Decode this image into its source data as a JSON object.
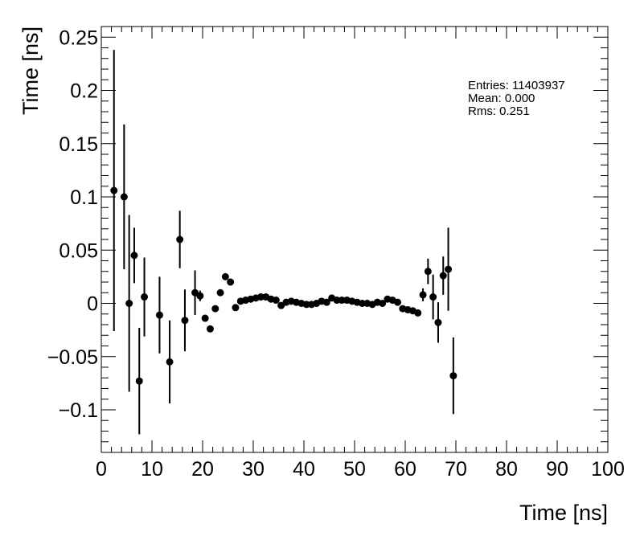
{
  "chart_data": {
    "type": "scatter",
    "xlabel": "Time [ns]",
    "ylabel": "Time [ns]",
    "xlim": [
      0,
      100
    ],
    "ylim": [
      -0.14,
      0.26
    ],
    "x_ticks": [
      0,
      10,
      20,
      30,
      40,
      50,
      60,
      70,
      80,
      90,
      100
    ],
    "x_tick_labels": [
      "0",
      "10",
      "20",
      "30",
      "40",
      "50",
      "60",
      "70",
      "80",
      "90",
      "100"
    ],
    "y_ticks": [
      -0.1,
      -0.05,
      0,
      0.05,
      0.1,
      0.15,
      0.2,
      0.25
    ],
    "y_tick_labels": [
      "−0.1",
      "−0.05",
      "0",
      "0.05",
      "0.1",
      "0.15",
      "0.2",
      "0.25"
    ],
    "grid": false,
    "marker_color": "#000000",
    "stats_box": {
      "entries": "Entries: 11403937",
      "mean": "Mean: 0.000",
      "rms": "Rms: 0.251"
    },
    "points": [
      {
        "x": 2.5,
        "y": 0.106,
        "err": 0.132
      },
      {
        "x": 4.5,
        "y": 0.1,
        "err": 0.068
      },
      {
        "x": 5.5,
        "y": 0.0,
        "err": 0.083
      },
      {
        "x": 6.5,
        "y": 0.045,
        "err": 0.026
      },
      {
        "x": 7.5,
        "y": -0.073,
        "err": 0.05
      },
      {
        "x": 8.5,
        "y": 0.006,
        "err": 0.037
      },
      {
        "x": 11.5,
        "y": -0.011,
        "err": 0.036
      },
      {
        "x": 13.5,
        "y": -0.055,
        "err": 0.039
      },
      {
        "x": 15.5,
        "y": 0.06,
        "err": 0.027
      },
      {
        "x": 16.5,
        "y": -0.016,
        "err": 0.029
      },
      {
        "x": 18.5,
        "y": 0.01,
        "err": 0.021
      },
      {
        "x": 19.5,
        "y": 0.007,
        "err": 0.005
      },
      {
        "x": 20.5,
        "y": -0.014,
        "err": 0.003
      },
      {
        "x": 21.5,
        "y": -0.024,
        "err": 0.003
      },
      {
        "x": 22.5,
        "y": -0.005,
        "err": 0.002
      },
      {
        "x": 23.5,
        "y": 0.01,
        "err": 0.002
      },
      {
        "x": 24.5,
        "y": 0.025,
        "err": 0.002
      },
      {
        "x": 25.5,
        "y": 0.02,
        "err": 0.002
      },
      {
        "x": 26.5,
        "y": -0.004,
        "err": 0.001
      },
      {
        "x": 27.5,
        "y": 0.002,
        "err": 0.001
      },
      {
        "x": 28.5,
        "y": 0.003,
        "err": 0.001
      },
      {
        "x": 29.5,
        "y": 0.004,
        "err": 0.001
      },
      {
        "x": 30.5,
        "y": 0.005,
        "err": 0.001
      },
      {
        "x": 31.5,
        "y": 0.006,
        "err": 0.001
      },
      {
        "x": 32.5,
        "y": 0.006,
        "err": 0.001
      },
      {
        "x": 33.5,
        "y": 0.004,
        "err": 0.001
      },
      {
        "x": 34.5,
        "y": 0.003,
        "err": 0.001
      },
      {
        "x": 35.5,
        "y": -0.002,
        "err": 0.001
      },
      {
        "x": 36.5,
        "y": 0.001,
        "err": 0.001
      },
      {
        "x": 37.5,
        "y": 0.002,
        "err": 0.001
      },
      {
        "x": 38.5,
        "y": 0.001,
        "err": 0.001
      },
      {
        "x": 39.5,
        "y": 0.0,
        "err": 0.001
      },
      {
        "x": 40.5,
        "y": -0.001,
        "err": 0.001
      },
      {
        "x": 41.5,
        "y": -0.001,
        "err": 0.001
      },
      {
        "x": 42.5,
        "y": 0.0,
        "err": 0.001
      },
      {
        "x": 43.5,
        "y": 0.002,
        "err": 0.001
      },
      {
        "x": 44.5,
        "y": 0.001,
        "err": 0.001
      },
      {
        "x": 45.5,
        "y": 0.005,
        "err": 0.001
      },
      {
        "x": 46.5,
        "y": 0.003,
        "err": 0.001
      },
      {
        "x": 47.5,
        "y": 0.003,
        "err": 0.001
      },
      {
        "x": 48.5,
        "y": 0.003,
        "err": 0.001
      },
      {
        "x": 49.5,
        "y": 0.002,
        "err": 0.001
      },
      {
        "x": 50.5,
        "y": 0.001,
        "err": 0.001
      },
      {
        "x": 51.5,
        "y": 0.0,
        "err": 0.001
      },
      {
        "x": 52.5,
        "y": 0.0,
        "err": 0.001
      },
      {
        "x": 53.5,
        "y": -0.001,
        "err": 0.001
      },
      {
        "x": 54.5,
        "y": 0.001,
        "err": 0.001
      },
      {
        "x": 55.5,
        "y": 0.0,
        "err": 0.001
      },
      {
        "x": 56.5,
        "y": 0.004,
        "err": 0.001
      },
      {
        "x": 57.5,
        "y": 0.003,
        "err": 0.001
      },
      {
        "x": 58.5,
        "y": 0.001,
        "err": 0.001
      },
      {
        "x": 59.5,
        "y": -0.005,
        "err": 0.001
      },
      {
        "x": 60.5,
        "y": -0.006,
        "err": 0.001
      },
      {
        "x": 61.5,
        "y": -0.007,
        "err": 0.001
      },
      {
        "x": 62.5,
        "y": -0.009,
        "err": 0.002
      },
      {
        "x": 63.5,
        "y": 0.008,
        "err": 0.006
      },
      {
        "x": 64.5,
        "y": 0.03,
        "err": 0.012
      },
      {
        "x": 65.5,
        "y": 0.006,
        "err": 0.021
      },
      {
        "x": 66.5,
        "y": -0.018,
        "err": 0.019
      },
      {
        "x": 67.5,
        "y": 0.026,
        "err": 0.018
      },
      {
        "x": 68.5,
        "y": 0.032,
        "err": 0.039
      },
      {
        "x": 69.5,
        "y": -0.068,
        "err": 0.036
      }
    ]
  }
}
